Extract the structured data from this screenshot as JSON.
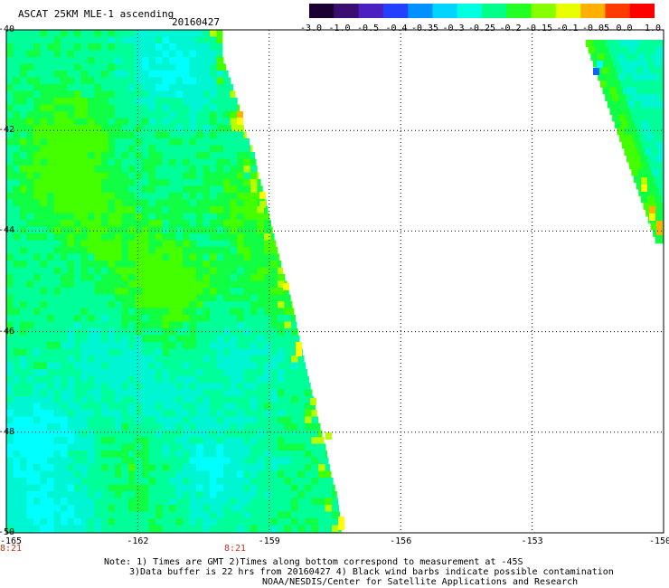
{
  "header": {
    "title": "ASCAT 25KM MLE-1 ascending",
    "date": "20160427"
  },
  "colorbar": {
    "labels": [
      "-3.0",
      "-1.0",
      "-0.5",
      "-0.4",
      "-0.35",
      "-0.3",
      "-0.25",
      "-0.2",
      "-0.15",
      "-0.1",
      "-0.05",
      "0.0",
      "1.0"
    ],
    "colors": [
      "#1a0033",
      "#3b0f70",
      "#4b1fc0",
      "#2340ff",
      "#0090ff",
      "#00d4ff",
      "#00ffe0",
      "#00ff88",
      "#22ff22",
      "#88ff00",
      "#e8ff00",
      "#ffb000",
      "#ff3b00",
      "#ff0000"
    ]
  },
  "map": {
    "lat_labels": [
      "-40",
      "-42",
      "-44",
      "-46",
      "-48",
      "-50"
    ],
    "lon_labels": [
      "-165",
      "-162",
      "-159",
      "-156",
      "-153",
      "-150"
    ],
    "time_labels": [
      "8:21",
      "8:21"
    ],
    "palette": {
      "deep_blue": "#0a66ff",
      "cyan": "#00ffff",
      "aqua": "#00f5d2",
      "sea_green": "#00ff99",
      "green": "#10ff44",
      "bright_green": "#44ff00",
      "yellow_green": "#b8ff00",
      "yellow": "#ffff00",
      "orange": "#ffb000"
    }
  },
  "notes": [
    "Note: 1) Times are GMT 2)Times along bottom correspond to measurement at -45S",
    "3)Data buffer is 22 hrs from 20160427 4) Black wind barbs indicate possible contamination",
    "NOAA/NESDIS/Center for Satellite Applications and Research"
  ]
}
